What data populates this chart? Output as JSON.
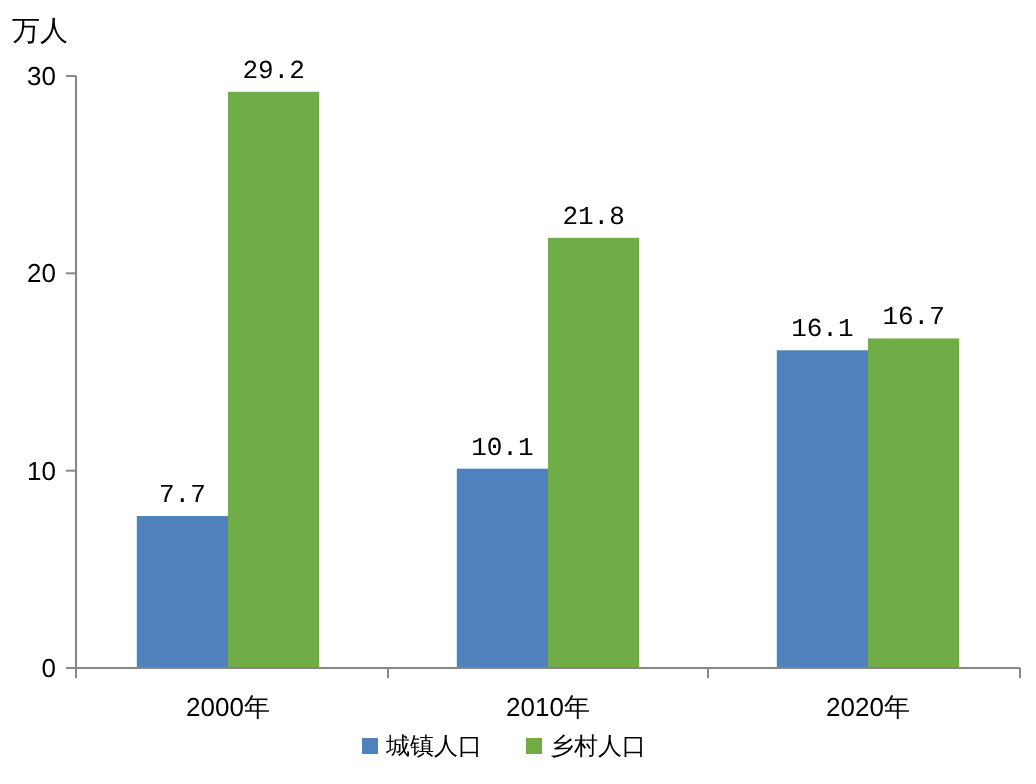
{
  "chart_data": {
    "type": "bar",
    "ylabel": "万人",
    "categories": [
      "2000年",
      "2010年",
      "2020年"
    ],
    "series": [
      {
        "name": "城镇人口",
        "color": "#4f81bd",
        "values": [
          7.7,
          10.1,
          16.1
        ]
      },
      {
        "name": "乡村人口",
        "color": "#70ad47",
        "values": [
          29.2,
          21.8,
          16.7
        ]
      }
    ],
    "ylim": [
      0,
      30
    ],
    "yticks": [
      0,
      10,
      20,
      30
    ],
    "data_labels": true,
    "legend": "bottom",
    "grid": false
  }
}
